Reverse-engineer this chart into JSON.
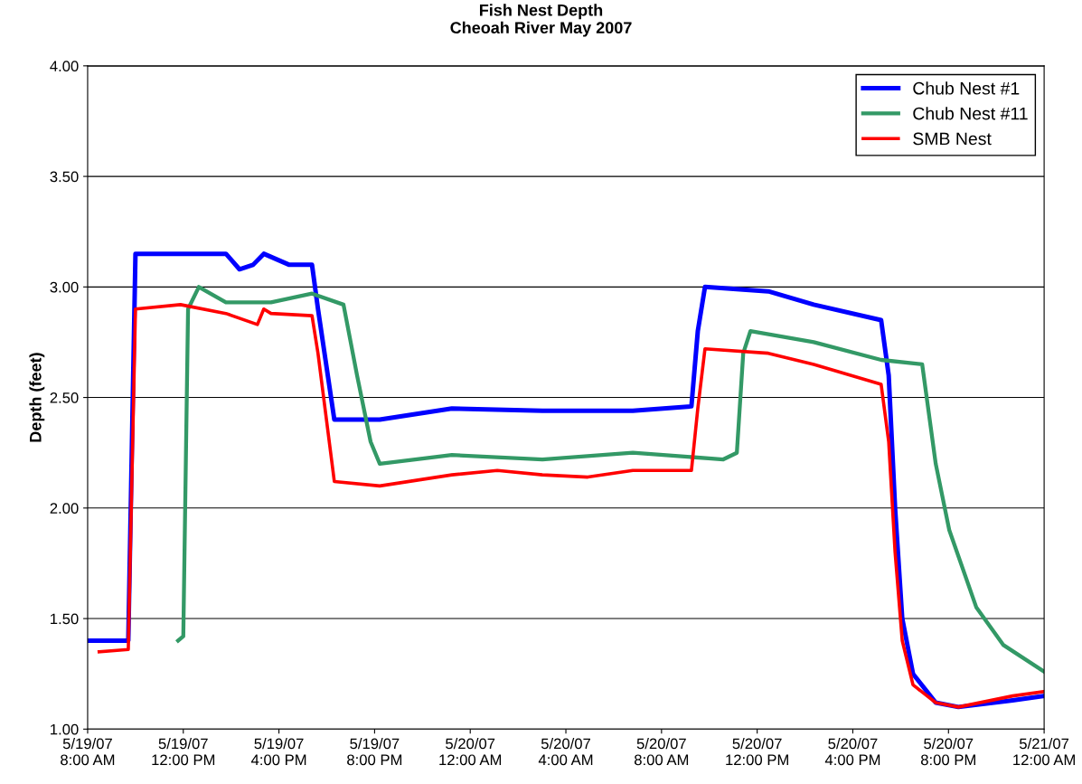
{
  "chart_data": {
    "type": "line",
    "title": "Fish Nest Depth\nCheoah River May 2007",
    "ylabel": "Depth (feet)",
    "xlim": [
      "2007-05-19T08:00",
      "2007-05-21T00:00"
    ],
    "xticks": [
      {
        "value": "2007-05-19T08:00",
        "label": "5/19/07\n8:00 AM"
      },
      {
        "value": "2007-05-19T12:00",
        "label": "5/19/07\n12:00 PM"
      },
      {
        "value": "2007-05-19T16:00",
        "label": "5/19/07\n4:00 PM"
      },
      {
        "value": "2007-05-19T20:00",
        "label": "5/19/07\n8:00 PM"
      },
      {
        "value": "2007-05-20T00:00",
        "label": "5/20/07\n12:00 AM"
      },
      {
        "value": "2007-05-20T04:00",
        "label": "5/20/07\n4:00 AM"
      },
      {
        "value": "2007-05-20T08:00",
        "label": "5/20/07\n8:00 AM"
      },
      {
        "value": "2007-05-20T12:00",
        "label": "5/20/07\n12:00 PM"
      },
      {
        "value": "2007-05-20T16:00",
        "label": "5/20/07\n4:00 PM"
      },
      {
        "value": "2007-05-20T20:00",
        "label": "5/20/07\n8:00 PM"
      },
      {
        "value": "2007-05-21T00:00",
        "label": "5/21/07\n12:00 AM"
      }
    ],
    "ylim": [
      1.0,
      4.0
    ],
    "yticks": [
      {
        "value": 1.0,
        "label": "1.00"
      },
      {
        "value": 1.5,
        "label": "1.50"
      },
      {
        "value": 2.0,
        "label": "2.00"
      },
      {
        "value": 2.5,
        "label": "2.50"
      },
      {
        "value": 3.0,
        "label": "3.00"
      },
      {
        "value": 3.5,
        "label": "3.50"
      },
      {
        "value": 4.0,
        "label": "4.00"
      }
    ],
    "grid": "y",
    "legend": "top right",
    "marker": "none",
    "line_style": "solid",
    "series": [
      {
        "name": "Chub Nest #1",
        "color": "#0000ff",
        "x": [
          "2007-05-19T08:00",
          "2007-05-19T09:42",
          "2007-05-19T10:00",
          "2007-05-19T13:47",
          "2007-05-19T14:21",
          "2007-05-19T14:55",
          "2007-05-19T15:22",
          "2007-05-19T16:26",
          "2007-05-19T17:23",
          "2007-05-19T17:38",
          "2007-05-19T18:19",
          "2007-05-19T20:13",
          "2007-05-19T23:14",
          "2007-05-20T03:01",
          "2007-05-20T06:48",
          "2007-05-20T09:15",
          "2007-05-20T09:31",
          "2007-05-20T09:49",
          "2007-05-20T12:28",
          "2007-05-20T14:22",
          "2007-05-20T17:11",
          "2007-05-20T17:30",
          "2007-05-20T17:46",
          "2007-05-20T18:04",
          "2007-05-20T18:31",
          "2007-05-20T19:28",
          "2007-05-20T20:25",
          "2007-05-20T22:41",
          "2007-05-21T00:00"
        ],
        "values": [
          1.4,
          1.4,
          3.15,
          3.15,
          3.08,
          3.1,
          3.15,
          3.1,
          3.1,
          2.9,
          2.4,
          2.4,
          2.45,
          2.44,
          2.44,
          2.46,
          2.8,
          3.0,
          2.98,
          2.92,
          2.85,
          2.6,
          2.0,
          1.5,
          1.25,
          1.12,
          1.1,
          1.13,
          1.15
        ]
      },
      {
        "name": "Chub Nest #11",
        "color": "#339966",
        "x": [
          "2007-05-19T11:47",
          "2007-05-19T12:00",
          "2007-05-19T12:12",
          "2007-05-19T12:39",
          "2007-05-19T13:47",
          "2007-05-19T15:40",
          "2007-05-19T17:23",
          "2007-05-19T18:42",
          "2007-05-19T19:16",
          "2007-05-19T19:50",
          "2007-05-19T20:13",
          "2007-05-19T23:14",
          "2007-05-20T03:01",
          "2007-05-20T06:48",
          "2007-05-20T10:35",
          "2007-05-20T11:09",
          "2007-05-20T11:25",
          "2007-05-20T11:43",
          "2007-05-20T14:22",
          "2007-05-20T17:11",
          "2007-05-20T18:54",
          "2007-05-20T19:28",
          "2007-05-20T20:02",
          "2007-05-20T21:10",
          "2007-05-20T22:18",
          "2007-05-21T00:00"
        ],
        "values": [
          1.4,
          1.42,
          2.9,
          3.0,
          2.93,
          2.93,
          2.97,
          2.92,
          2.6,
          2.3,
          2.2,
          2.24,
          2.22,
          2.25,
          2.22,
          2.25,
          2.7,
          2.8,
          2.75,
          2.67,
          2.65,
          2.2,
          1.9,
          1.55,
          1.38,
          1.26
        ]
      },
      {
        "name": "SMB Nest",
        "color": "#ff0000",
        "x": [
          "2007-05-19T08:29",
          "2007-05-19T09:42",
          "2007-05-19T10:00",
          "2007-05-19T11:53",
          "2007-05-19T13:47",
          "2007-05-19T15:06",
          "2007-05-19T15:22",
          "2007-05-19T15:40",
          "2007-05-19T17:23",
          "2007-05-19T17:38",
          "2007-05-19T18:19",
          "2007-05-19T20:13",
          "2007-05-19T23:14",
          "2007-05-20T01:08",
          "2007-05-20T03:01",
          "2007-05-20T04:55",
          "2007-05-20T06:48",
          "2007-05-20T09:15",
          "2007-05-20T09:31",
          "2007-05-20T09:49",
          "2007-05-20T12:28",
          "2007-05-20T14:22",
          "2007-05-20T17:11",
          "2007-05-20T17:30",
          "2007-05-20T17:46",
          "2007-05-20T18:04",
          "2007-05-20T18:31",
          "2007-05-20T19:28",
          "2007-05-20T20:25",
          "2007-05-20T22:41",
          "2007-05-21T00:00"
        ],
        "values": [
          1.35,
          1.36,
          2.9,
          2.92,
          2.88,
          2.83,
          2.9,
          2.88,
          2.87,
          2.7,
          2.12,
          2.1,
          2.15,
          2.17,
          2.15,
          2.14,
          2.17,
          2.17,
          2.45,
          2.72,
          2.7,
          2.65,
          2.56,
          2.3,
          1.8,
          1.4,
          1.2,
          1.12,
          1.1,
          1.15,
          1.17
        ]
      }
    ]
  }
}
